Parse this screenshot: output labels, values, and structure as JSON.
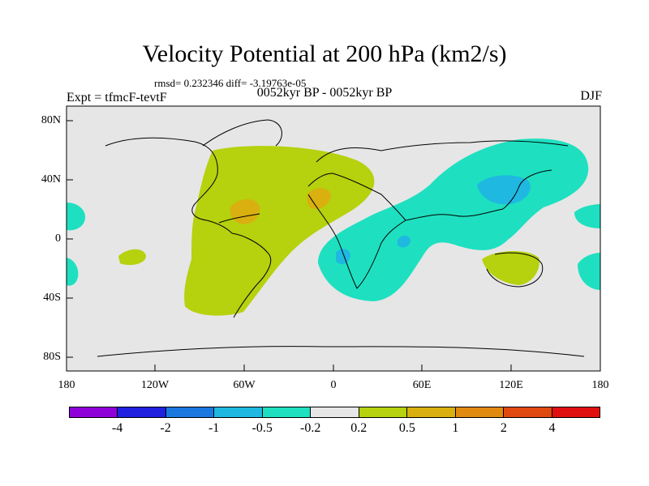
{
  "title": "Velocity Potential at 200 hPa (km2/s)",
  "stats": "rmsd= 0.232346  diff= -3.19763e-05",
  "experiment": "Expt = tfmcF-tevtF",
  "case": "0052kyr BP - 0052kyr BP",
  "season": "DJF",
  "y_ticks": [
    "80N",
    "40N",
    "0",
    "40S",
    "80S"
  ],
  "x_ticks": [
    "180",
    "120W",
    "60W",
    "0",
    "60E",
    "120E",
    "180"
  ],
  "colorbar": {
    "colors": [
      "#8f00d9",
      "#2020e0",
      "#1a78e0",
      "#1fb8e0",
      "#1ee0c0",
      "#e6e6e6",
      "#b6d10e",
      "#d9b010",
      "#e08a10",
      "#e04a10",
      "#e01010"
    ],
    "labels": [
      "-4",
      "-2",
      "-1",
      "-0.5",
      "-0.2",
      "0.2",
      "0.5",
      "1",
      "2",
      "4"
    ]
  }
}
